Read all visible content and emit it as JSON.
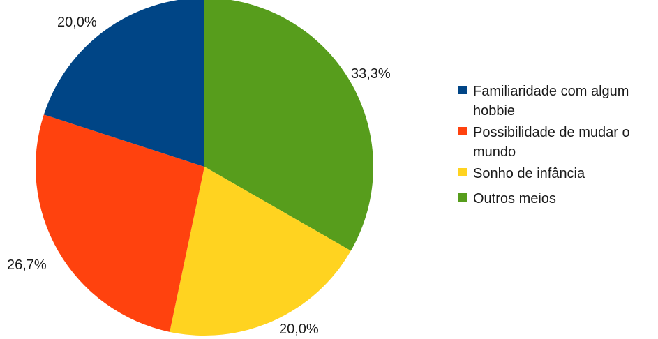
{
  "chart_data": {
    "type": "pie",
    "title": "",
    "categories": [
      "Familiaridade com algum hobbie",
      "Possibilidade de mudar o mundo",
      "Sonho de infância",
      "Outros meios"
    ],
    "values": [
      20.0,
      26.7,
      20.0,
      33.3
    ],
    "labels": [
      "20,0%",
      "26,7%",
      "20,0%",
      "33,3%"
    ],
    "legend": {
      "position": "right",
      "items": [
        {
          "lines": [
            "Familiaridade com algum",
            "hobbie"
          ],
          "color": "#004586"
        },
        {
          "lines": [
            "Possibilidade de mudar o",
            "mundo"
          ],
          "color": "#ff420e"
        },
        {
          "lines": [
            "Sonho de infância"
          ],
          "color": "#ffd320"
        },
        {
          "lines": [
            "Outros meios"
          ],
          "color": "#579d1c"
        }
      ]
    },
    "colors": [
      "#004586",
      "#ff420e",
      "#ffd320",
      "#579d1c"
    ]
  }
}
